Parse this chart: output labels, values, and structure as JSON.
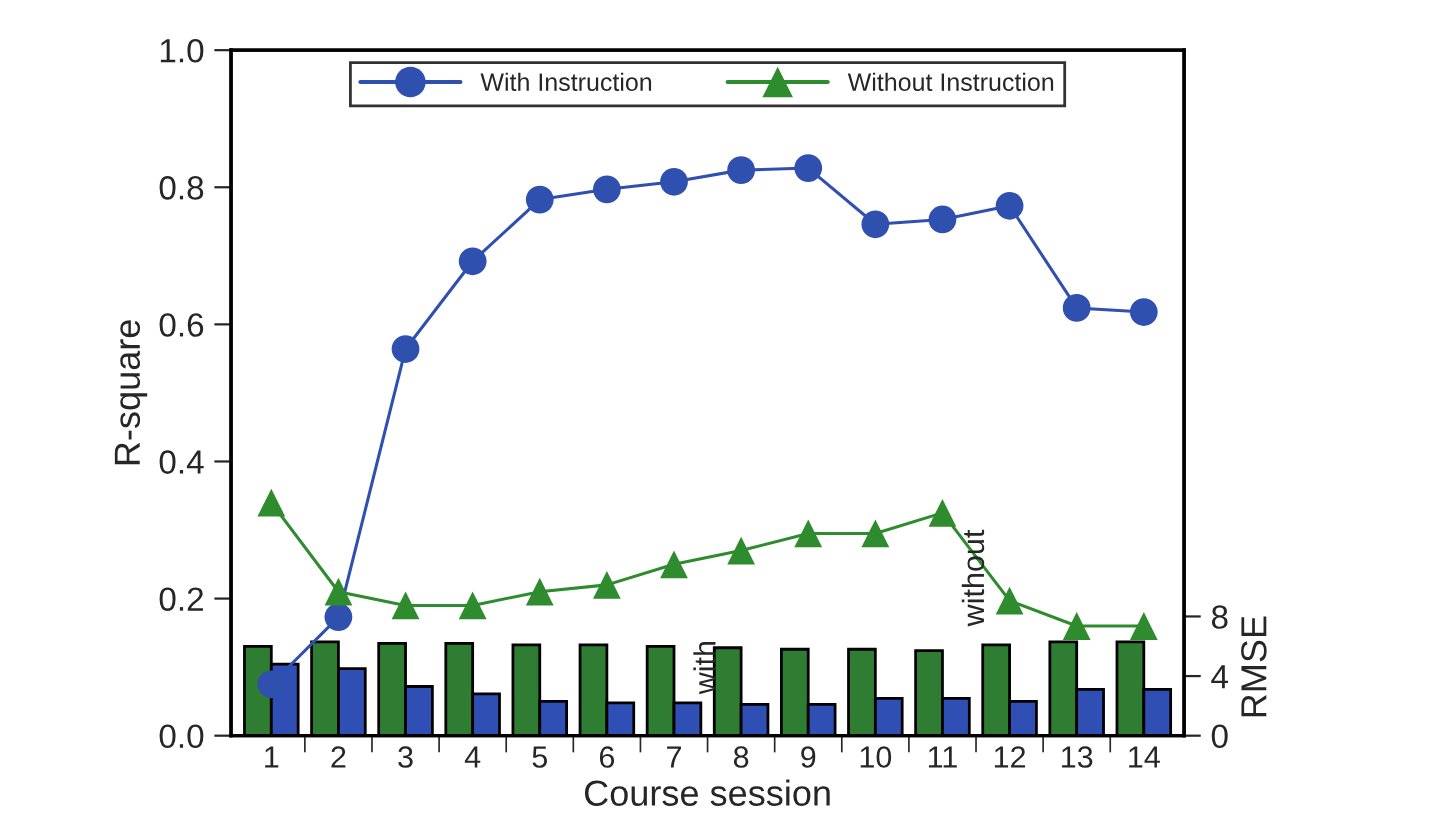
{
  "chart_data": {
    "type": "line",
    "xlabel": "Course session",
    "ylabel": "R-square",
    "y2label": "RMSE",
    "categories": [
      "1",
      "2",
      "3",
      "4",
      "5",
      "6",
      "7",
      "8",
      "9",
      "10",
      "11",
      "12",
      "13",
      "14"
    ],
    "ylim": [
      0,
      1.0
    ],
    "yticks": [
      {
        "value": 0,
        "label": "0.0"
      },
      0.2,
      0.4,
      0.6,
      0.8,
      {
        "value": 1.0,
        "label": "1.0"
      }
    ],
    "y2lim": [
      0,
      46
    ],
    "y2ticks": [
      0,
      4,
      8
    ],
    "grid": false,
    "legend": "top",
    "series": [
      {
        "type": "bar",
        "axis": "y2",
        "color": "#2e7d32",
        "values": [
          6.0,
          6.3,
          6.2,
          6.2,
          6.1,
          6.1,
          6.0,
          5.9,
          5.8,
          5.8,
          5.7,
          6.1,
          6.3,
          6.3
        ]
      },
      {
        "type": "bar",
        "axis": "y2",
        "color": "#2f4fb5",
        "values": [
          4.8,
          4.5,
          3.3,
          2.8,
          2.3,
          2.2,
          2.2,
          2.1,
          2.1,
          2.5,
          2.5,
          2.3,
          3.1,
          3.1
        ]
      },
      {
        "name": "With Instruction",
        "marker": "circle",
        "color": "#3050b0",
        "values": [
          0.075,
          0.173,
          0.564,
          0.692,
          0.782,
          0.797,
          0.808,
          0.825,
          0.828,
          0.746,
          0.753,
          0.773,
          0.624,
          0.618
        ]
      },
      {
        "name": "Without Instruction",
        "marker": "triangle",
        "color": "#2e8b2e",
        "values": [
          0.34,
          0.21,
          0.19,
          0.19,
          0.21,
          0.22,
          0.25,
          0.27,
          0.295,
          0.295,
          0.325,
          0.197,
          0.16,
          0.16
        ]
      }
    ],
    "annotations": [
      "with",
      "without"
    ]
  }
}
